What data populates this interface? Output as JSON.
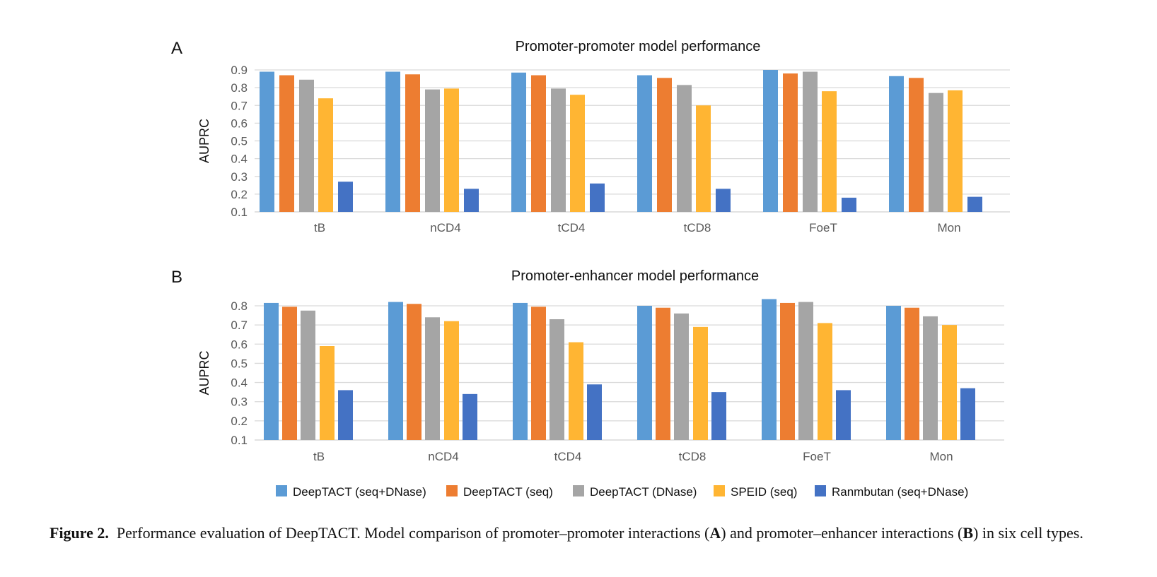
{
  "chart_data": [
    {
      "type": "bar",
      "panel_label": "A",
      "title": "Promoter-promoter model performance",
      "ylabel": "AUPRC",
      "xlabel": "",
      "ylim": [
        0.1,
        0.9
      ],
      "yticks": [
        "0.1",
        "0.2",
        "0.3",
        "0.4",
        "0.5",
        "0.6",
        "0.7",
        "0.8",
        "0.9"
      ],
      "grid": true,
      "categories": [
        "tB",
        "nCD4",
        "tCD4",
        "tCD8",
        "FoeT",
        "Mon"
      ],
      "series": [
        {
          "name": "DeepTACT (seq+DNase)",
          "color": "#5B9BD5",
          "values": [
            0.89,
            0.89,
            0.885,
            0.87,
            0.9,
            0.865
          ]
        },
        {
          "name": "DeepTACT (seq)",
          "color": "#ED7D31",
          "values": [
            0.87,
            0.875,
            0.87,
            0.855,
            0.88,
            0.855
          ]
        },
        {
          "name": "DeepTACT (DNase)",
          "color": "#A5A5A5",
          "values": [
            0.845,
            0.79,
            0.795,
            0.815,
            0.89,
            0.77
          ]
        },
        {
          "name": "SPEID (seq)",
          "color": "#FFB533",
          "values": [
            0.74,
            0.795,
            0.76,
            0.7,
            0.78,
            0.785
          ]
        },
        {
          "name": "Ranmbutan (seq+DNase)",
          "color": "#4472C4",
          "values": [
            0.27,
            0.23,
            0.26,
            0.23,
            0.18,
            0.185
          ]
        }
      ]
    },
    {
      "type": "bar",
      "panel_label": "B",
      "title": "Promoter-enhancer model performance",
      "ylabel": "AUPRC",
      "xlabel": "",
      "ylim": [
        0.1,
        0.8
      ],
      "yticks": [
        "0.1",
        "0.2",
        "0.3",
        "0.4",
        "0.5",
        "0.6",
        "0.7",
        "0.8"
      ],
      "grid": true,
      "categories": [
        "tB",
        "nCD4",
        "tCD4",
        "tCD8",
        "FoeT",
        "Mon"
      ],
      "series": [
        {
          "name": "DeepTACT (seq+DNase)",
          "color": "#5B9BD5",
          "values": [
            0.815,
            0.82,
            0.815,
            0.8,
            0.835,
            0.8
          ]
        },
        {
          "name": "DeepTACT (seq)",
          "color": "#ED7D31",
          "values": [
            0.795,
            0.81,
            0.795,
            0.79,
            0.815,
            0.79
          ]
        },
        {
          "name": "DeepTACT (DNase)",
          "color": "#A5A5A5",
          "values": [
            0.775,
            0.74,
            0.73,
            0.76,
            0.82,
            0.745
          ]
        },
        {
          "name": "SPEID (seq)",
          "color": "#FFB533",
          "values": [
            0.59,
            0.72,
            0.61,
            0.69,
            0.71,
            0.7
          ]
        },
        {
          "name": "Ranmbutan (seq+DNase)",
          "color": "#4472C4",
          "values": [
            0.36,
            0.34,
            0.39,
            0.35,
            0.36,
            0.37
          ]
        }
      ]
    }
  ],
  "legend": {
    "placement": "bottom",
    "entries": [
      "DeepTACT (seq+DNase)",
      "DeepTACT (seq)",
      "DeepTACT (DNase)",
      "SPEID (seq)",
      "Ranmbutan (seq+DNase)"
    ]
  },
  "caption": {
    "label": "Figure 2.",
    "text_1": "Performance evaluation of DeepTACT. Model comparison of promoter–promoter interactions (",
    "ref_a": "A",
    "text_2": ") and promoter–enhancer interactions (",
    "ref_b": "B",
    "text_3": ") in six cell types."
  }
}
